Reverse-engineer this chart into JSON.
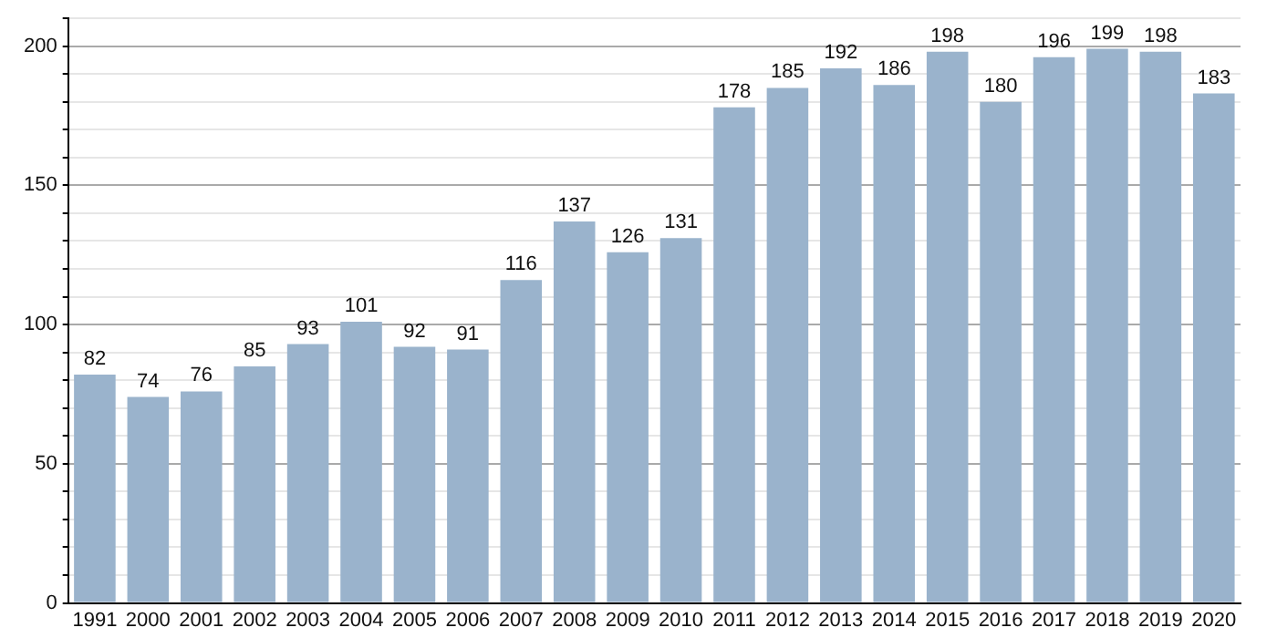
{
  "chart_data": {
    "type": "bar",
    "categories": [
      "1991",
      "2000",
      "2001",
      "2002",
      "2003",
      "2004",
      "2005",
      "2006",
      "2007",
      "2008",
      "2009",
      "2010",
      "2011",
      "2012",
      "2013",
      "2014",
      "2015",
      "2016",
      "2017",
      "2018",
      "2019",
      "2020"
    ],
    "values": [
      82,
      74,
      76,
      85,
      93,
      101,
      92,
      91,
      116,
      137,
      126,
      131,
      178,
      185,
      192,
      186,
      198,
      180,
      196,
      199,
      198,
      183
    ],
    "color": "#9ab3cc",
    "ylim": [
      0,
      210
    ],
    "yticks": [
      0,
      {
        "value": 10,
        "label": null
      },
      {
        "value": 20,
        "label": null
      },
      {
        "value": 30,
        "label": null
      },
      {
        "value": 40,
        "label": null
      },
      50,
      {
        "value": 60,
        "label": null
      },
      {
        "value": 70,
        "label": null
      },
      {
        "value": 80,
        "label": null
      },
      {
        "value": 90,
        "label": null
      },
      100,
      {
        "value": 110,
        "label": null
      },
      {
        "value": 120,
        "label": null
      },
      {
        "value": 130,
        "label": null
      },
      {
        "value": 140,
        "label": null
      },
      150,
      {
        "value": 160,
        "label": null
      },
      {
        "value": 170,
        "label": null
      },
      {
        "value": 180,
        "label": null
      },
      {
        "value": 190,
        "label": null
      },
      200,
      {
        "value": 210,
        "label": null
      }
    ],
    "grid": "y",
    "data_labels": true
  }
}
